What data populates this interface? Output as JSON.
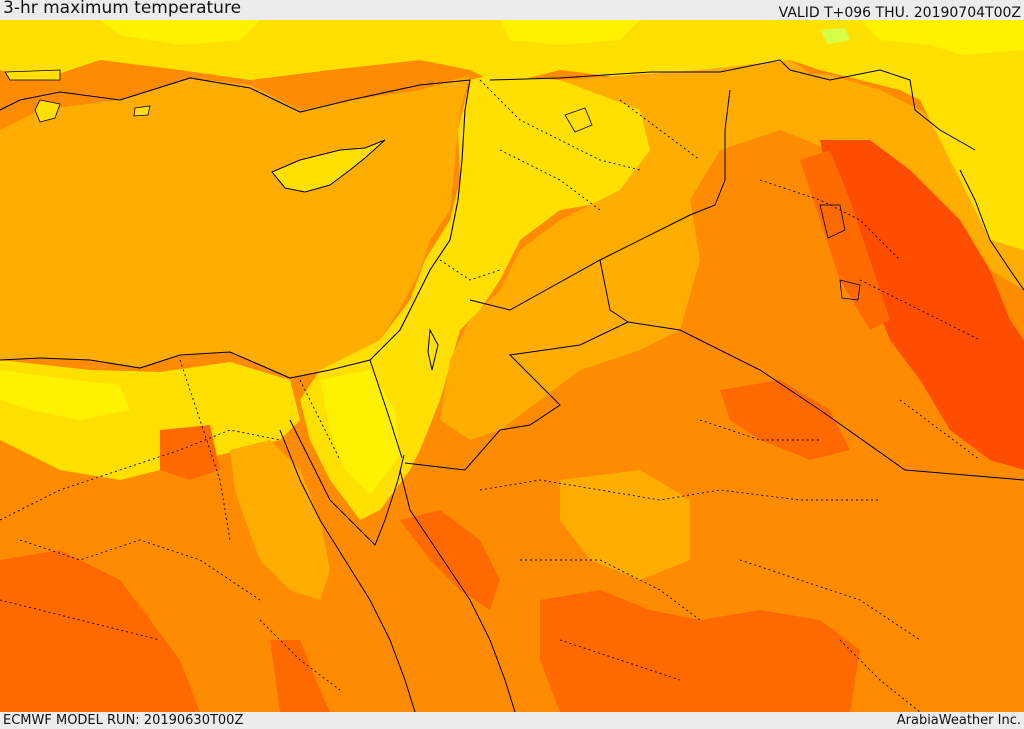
{
  "header": {
    "title": "3-hr maximum temperature",
    "valid": "VALID T+096 THU. 20190704T00Z"
  },
  "footer": {
    "model_run": "ECMWF MODEL RUN: 20190630T00Z",
    "credit": "ArabiaWeather Inc."
  },
  "map": {
    "palette": {
      "sea": "#ffad00",
      "yellow": "#ffe000",
      "light_yellow": "#fff200",
      "orange": "#ff8c00",
      "dark_orange": "#ff6a00",
      "red_orange": "#ff4d00",
      "pale_green": "#d6ff4a",
      "border": "#000000"
    }
  }
}
